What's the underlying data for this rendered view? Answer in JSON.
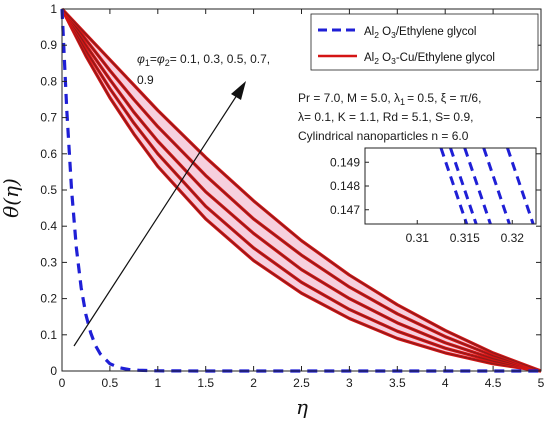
{
  "chart_data": {
    "type": "line",
    "xlabel": "η",
    "ylabel": "θ(η)",
    "xlim": [
      0,
      5
    ],
    "ylim": [
      0,
      1
    ],
    "x_ticks": [
      "0",
      "0.5",
      "1",
      "1.5",
      "2",
      "2.5",
      "3",
      "3.5",
      "4",
      "4.5",
      "5"
    ],
    "y_ticks": [
      "0",
      "0.1",
      "0.2",
      "0.3",
      "0.4",
      "0.5",
      "0.6",
      "0.7",
      "0.8",
      "0.9",
      "1"
    ],
    "grid": false,
    "legend_position": "top-right",
    "colors": {
      "al2o3": "#1f1fd6",
      "hybrid": "#d41414",
      "hybrid_core": "#8b1c1c",
      "fill": "#f6d0de"
    },
    "legend": [
      {
        "main": "Al",
        "sub": "2",
        "rest": " O",
        "sub2": "3",
        "tail": "/Ethylene glycol",
        "style": "dashed"
      },
      {
        "main": "Al",
        "sub": "2",
        "rest": " O",
        "sub2": "3",
        "tail": "-Cu/Ethylene glycol",
        "style": "solid"
      }
    ],
    "arrow_label": {
      "phi1": "φ",
      "sub1": "1",
      "eq": "=",
      "phi2": "φ",
      "sub2": "2",
      "values": "= 0.1, 0.3, 0.5, 0.7,",
      "last": "0.9"
    },
    "parameters": [
      "Pr = 7.0, M = 5.0, λ",
      "1",
      "= 0.5, ξ = π/6,",
      "λ= 0.1, K = 1.1, Rd = 5.1, S= 0.9,",
      "Cylindrical nanoparticles n = 6.0"
    ],
    "phi_values": [
      0.1,
      0.3,
      0.5,
      0.7,
      0.9
    ],
    "series": [
      {
        "name": "Al2 O3/Ethylene glycol",
        "x": [
          0,
          0.05,
          0.1,
          0.15,
          0.2,
          0.25,
          0.3,
          0.35,
          0.4,
          0.5,
          0.6,
          0.7,
          0.8,
          1.0,
          1.5,
          2,
          3,
          4,
          5
        ],
        "y": [
          1,
          0.72,
          0.5,
          0.34,
          0.23,
          0.155,
          0.105,
          0.07,
          0.047,
          0.02,
          0.009,
          0.004,
          0.002,
          0.0005,
          0,
          0,
          0,
          0,
          0
        ]
      },
      {
        "name": "Al2 O3-Cu/Ethylene glycol",
        "x": [
          0,
          0.25,
          0.5,
          0.75,
          1,
          1.5,
          2,
          2.5,
          3,
          3.5,
          4,
          4.5,
          5
        ],
        "y": [
          1,
          0.87,
          0.755,
          0.655,
          0.565,
          0.42,
          0.305,
          0.215,
          0.145,
          0.09,
          0.05,
          0.02,
          0
        ]
      }
    ],
    "hybrid_curves": [
      {
        "x": [
          0,
          0.25,
          0.5,
          0.75,
          1,
          1.5,
          2,
          2.5,
          3,
          3.5,
          4,
          4.5,
          5
        ],
        "y": [
          1,
          0.87,
          0.755,
          0.655,
          0.565,
          0.42,
          0.305,
          0.215,
          0.145,
          0.09,
          0.05,
          0.02,
          0
        ]
      },
      {
        "x": [
          0,
          0.25,
          0.5,
          0.75,
          1,
          1.5,
          2,
          2.5,
          3,
          3.5,
          4,
          4.5,
          5
        ],
        "y": [
          1,
          0.885,
          0.78,
          0.685,
          0.6,
          0.455,
          0.34,
          0.245,
          0.17,
          0.11,
          0.063,
          0.027,
          0
        ]
      },
      {
        "x": [
          0,
          0.25,
          0.5,
          0.75,
          1,
          1.5,
          2,
          2.5,
          3,
          3.5,
          4,
          4.5,
          5
        ],
        "y": [
          1,
          0.9,
          0.805,
          0.715,
          0.635,
          0.495,
          0.38,
          0.28,
          0.2,
          0.133,
          0.078,
          0.034,
          0
        ]
      },
      {
        "x": [
          0,
          0.25,
          0.5,
          0.75,
          1,
          1.5,
          2,
          2.5,
          3,
          3.5,
          4,
          4.5,
          5
        ],
        "y": [
          1,
          0.915,
          0.83,
          0.75,
          0.675,
          0.54,
          0.42,
          0.32,
          0.232,
          0.158,
          0.095,
          0.042,
          0
        ]
      },
      {
        "x": [
          0,
          0.25,
          0.5,
          0.75,
          1,
          1.5,
          2,
          2.5,
          3,
          3.5,
          4,
          4.5,
          5
        ],
        "y": [
          1,
          0.93,
          0.86,
          0.79,
          0.72,
          0.59,
          0.47,
          0.36,
          0.265,
          0.183,
          0.112,
          0.05,
          0
        ]
      }
    ],
    "inset": {
      "xlim": [
        0.3045,
        0.3225
      ],
      "ylim": [
        0.1464,
        0.1496
      ],
      "x_ticks": [
        "0.31",
        "0.315",
        "0.32"
      ],
      "y_ticks": [
        "0.147",
        "0.148",
        "0.149"
      ],
      "lines": [
        {
          "x": [
            0.3125,
            0.3152
          ],
          "y": [
            0.1496,
            0.1464
          ]
        },
        {
          "x": [
            0.3135,
            0.3162
          ],
          "y": [
            0.1496,
            0.1464
          ]
        },
        {
          "x": [
            0.315,
            0.3177
          ],
          "y": [
            0.1496,
            0.1464
          ]
        },
        {
          "x": [
            0.317,
            0.3197
          ],
          "y": [
            0.1496,
            0.1464
          ]
        },
        {
          "x": [
            0.3195,
            0.3222
          ],
          "y": [
            0.1496,
            0.1464
          ]
        }
      ]
    }
  }
}
